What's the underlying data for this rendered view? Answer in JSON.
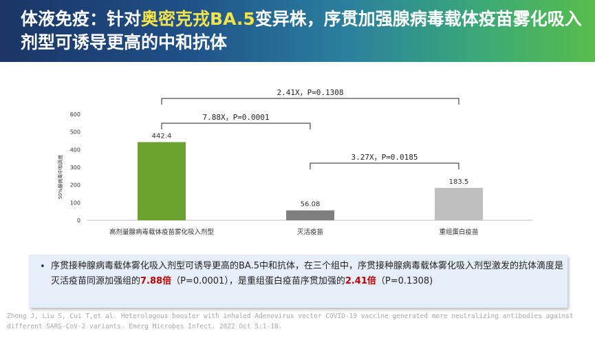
{
  "title": {
    "part1": "体液免疫：针对",
    "highlight": "奥密克戎BA.5",
    "part2": "变异株，序贯加强腺病毒载体疫苗雾化吸入剂型可诱导更高的中和抗体"
  },
  "chart_data": {
    "type": "bar",
    "categories": [
      "高剂量腺病毒载体疫苗雾化吸入剂型",
      "灭活疫苗",
      "重组蛋白疫苗"
    ],
    "values": [
      442.4,
      56.08,
      183.5
    ],
    "value_labels": [
      "442.4",
      "56.08",
      "183.5"
    ],
    "colors": [
      "#6aa12f",
      "#7f7f7f",
      "#bfbfbf"
    ],
    "ylabel": "50%腺病毒中和滴度",
    "ylim": [
      0,
      600
    ],
    "yticks": [
      "0",
      "100",
      "200",
      "300",
      "400",
      "500",
      "600"
    ],
    "comparisons": [
      {
        "from": 0,
        "to": 2,
        "label": "2.41X，P=0.1308",
        "level": 2
      },
      {
        "from": 0,
        "to": 1,
        "label": "7.88X，P=0.0001",
        "level": 1
      },
      {
        "from": 1,
        "to": 2,
        "label": "3.27X，P=0.0185",
        "level": 0
      }
    ],
    "grid": false,
    "legend": "none"
  },
  "summary": {
    "bullet": "•",
    "text1": "序贯接种腺病毒载体雾化吸入剂型可诱导更高的BA.5中和抗体，在三个组中，序贯接种腺病毒载体雾化吸入剂型激发的抗体滴度是灭活疫苗同源加强组的",
    "fold1": "7.88倍",
    "text2": "（P=0.0001），是重组蛋白疫苗序贯加强的",
    "fold2": "2.41倍",
    "text3": "（P=0.1308)"
  },
  "reference": "Zhong J, Liu S, Cui T,et al. Heterologous booster with inhaled Adenovirus vector COVID-19 vaccine generated more neutralizing antibodies against different SARS-CoV-2 variants. Emerg Microbes Infect. 2022 Oct 5:1-18."
}
